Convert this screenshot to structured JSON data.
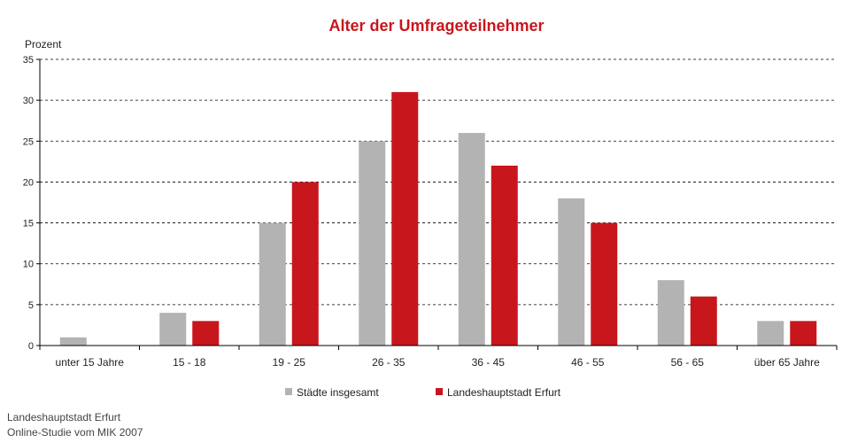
{
  "chart_data": {
    "type": "bar",
    "title": "Alter der Umfrageteilnehmer",
    "ylabel": "Prozent",
    "xlabel": "",
    "ylim": [
      0,
      35
    ],
    "yticks": [
      0,
      5,
      10,
      15,
      20,
      25,
      30,
      35
    ],
    "grid": true,
    "legend_position": "bottom",
    "categories": [
      "unter 15 Jahre",
      "15 - 18",
      "19 - 25",
      "26 - 35",
      "36 - 45",
      "46 - 55",
      "56 - 65",
      "über 65 Jahre"
    ],
    "series": [
      {
        "name": "Städte insgesamt",
        "color": "#b3b3b3",
        "values": [
          1,
          4,
          15,
          25,
          26,
          18,
          8,
          3
        ]
      },
      {
        "name": "Landeshauptstadt Erfurt",
        "color": "#c8161d",
        "values": [
          0,
          3,
          20,
          31,
          22,
          15,
          6,
          3
        ]
      }
    ],
    "title_color": "#c8161d"
  },
  "footer": {
    "line1": "Landeshauptstadt Erfurt",
    "line2": "Online-Studie vom MIK 2007"
  }
}
